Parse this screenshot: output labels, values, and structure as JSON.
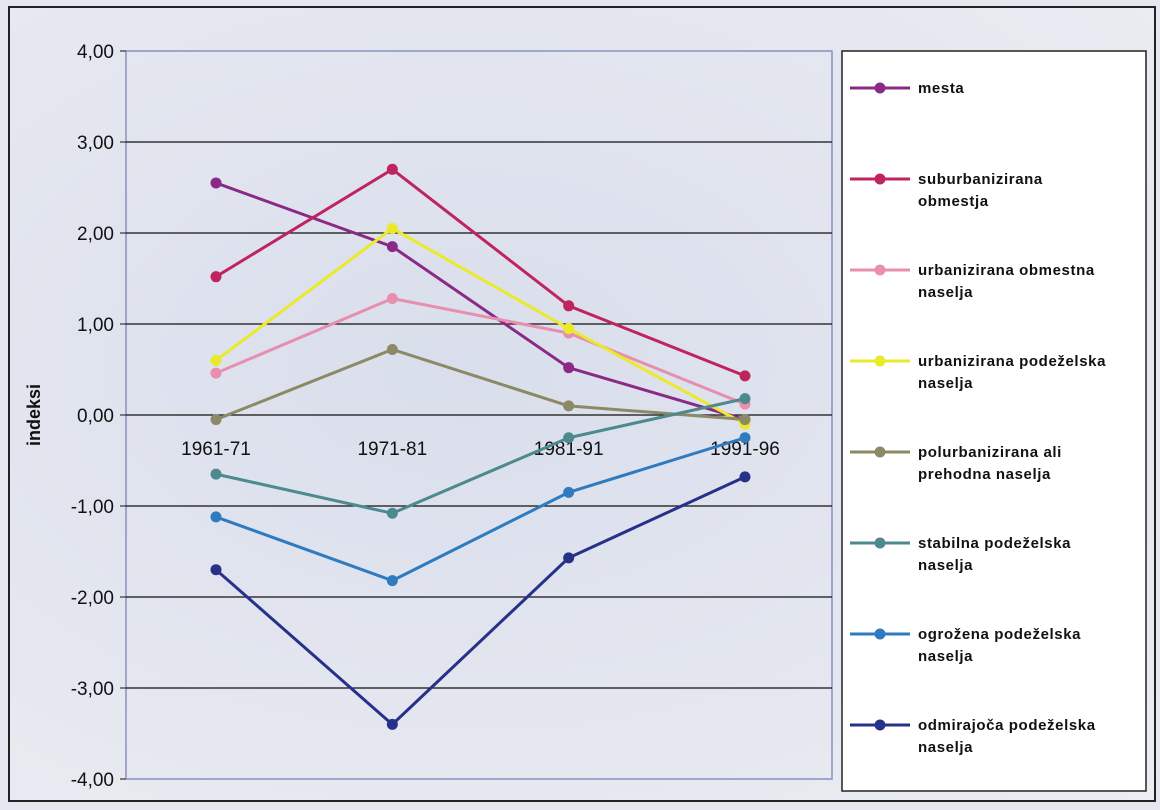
{
  "chart_data": {
    "type": "line",
    "title": "",
    "xlabel": "",
    "ylabel": "indeksi",
    "categories": [
      "1961-71",
      "1971-81",
      "1981-91",
      "1991-96"
    ],
    "ylim": [
      -4,
      4
    ],
    "yticks": [
      "4,00",
      "3,00",
      "2,00",
      "1,00",
      "0,00",
      "-1,00",
      "-2,00",
      "-3,00",
      "-4,00"
    ],
    "grid": true,
    "legend_position": "right",
    "series": [
      {
        "name": "mesta",
        "color": "#8b2a86",
        "values": [
          2.55,
          1.85,
          0.52,
          -0.05
        ]
      },
      {
        "name": "suburbanizirana obmestja",
        "color": "#c0245e",
        "values": [
          1.52,
          2.7,
          1.2,
          0.43
        ]
      },
      {
        "name": "urbanizirana obmestna naselja",
        "color": "#e88fb0",
        "values": [
          0.46,
          1.28,
          0.9,
          0.12
        ]
      },
      {
        "name": "urbanizirana podeželska naselja",
        "color": "#eaea2a",
        "values": [
          0.6,
          2.05,
          0.95,
          -0.1
        ]
      },
      {
        "name": "polurbanizirana ali prehodna naselja",
        "color": "#8c8a66",
        "values": [
          -0.05,
          0.72,
          0.1,
          -0.05
        ]
      },
      {
        "name": "stabilna podeželska naselja",
        "color": "#4c8a8e",
        "values": [
          -0.65,
          -1.08,
          -0.25,
          0.18
        ]
      },
      {
        "name": "ogrožena podeželska naselja",
        "color": "#2f7bbf",
        "values": [
          -1.12,
          -1.82,
          -0.85,
          -0.25
        ]
      },
      {
        "name": "odmirajoča podeželska naselja",
        "color": "#27318a",
        "values": [
          -1.7,
          -3.4,
          -1.57,
          -0.68
        ]
      }
    ]
  }
}
